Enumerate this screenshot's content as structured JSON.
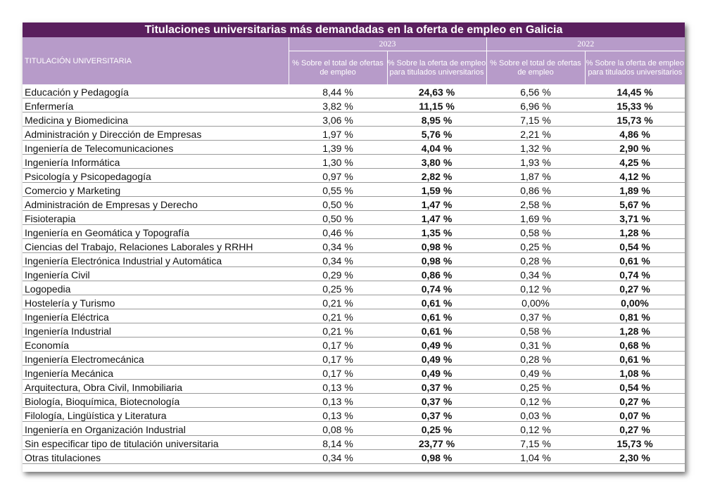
{
  "title": "Titulaciones universitarias más demandadas en la oferta de empleo en Galicia",
  "header": {
    "titulacion": "TITULACIÓN UNIVERSITARIA",
    "year_2023": "2023",
    "year_2022": "2022",
    "col_total": "% Sobre el total de ofertas de empleo",
    "col_titulados": "% Sobre la oferta de empleo para titulados universitarios"
  },
  "rows": [
    {
      "name": "Educación y Pedagogía",
      "t2023": "8,44 %",
      "u2023": "24,63 %",
      "t2022": "6,56 %",
      "u2022": "14,45 %"
    },
    {
      "name": "Enfermería",
      "t2023": "3,82 %",
      "u2023": "11,15 %",
      "t2022": "6,96 %",
      "u2022": "15,33 %"
    },
    {
      "name": "Medicina y Biomedicina",
      "t2023": "3,06 %",
      "u2023": "8,95 %",
      "t2022": "7,15 %",
      "u2022": "15,73 %"
    },
    {
      "name": "Administración y Dirección de Empresas",
      "t2023": "1,97 %",
      "u2023": "5,76 %",
      "t2022": "2,21 %",
      "u2022": "4,86 %"
    },
    {
      "name": "Ingeniería de Telecomunicaciones",
      "t2023": "1,39 %",
      "u2023": "4,04 %",
      "t2022": "1,32 %",
      "u2022": "2,90 %"
    },
    {
      "name": "Ingeniería Informática",
      "t2023": "1,30 %",
      "u2023": "3,80 %",
      "t2022": "1,93 %",
      "u2022": "4,25 %"
    },
    {
      "name": "Psicología y Psicopedagogía",
      "t2023": "0,97 %",
      "u2023": "2,82 %",
      "t2022": "1,87 %",
      "u2022": "4,12 %"
    },
    {
      "name": "Comercio y Marketing",
      "t2023": "0,55 %",
      "u2023": "1,59 %",
      "t2022": "0,86 %",
      "u2022": "1,89 %"
    },
    {
      "name": "Administración de Empresas y Derecho",
      "t2023": "0,50 %",
      "u2023": "1,47 %",
      "t2022": "2,58 %",
      "u2022": "5,67 %"
    },
    {
      "name": "Fisioterapia",
      "t2023": "0,50 %",
      "u2023": "1,47 %",
      "t2022": "1,69 %",
      "u2022": "3,71 %"
    },
    {
      "name": "Ingeniería en Geomática y Topografía",
      "t2023": "0,46 %",
      "u2023": "1,35 %",
      "t2022": "0,58 %",
      "u2022": "1,28 %"
    },
    {
      "name": "Ciencias del Trabajo, Relaciones Laborales y RRHH",
      "t2023": "0,34 %",
      "u2023": "0,98 %",
      "t2022": "0,25 %",
      "u2022": "0,54 %"
    },
    {
      "name": "Ingeniería Electrónica Industrial y Automática",
      "t2023": "0,34 %",
      "u2023": "0,98 %",
      "t2022": "0,28 %",
      "u2022": "0,61 %"
    },
    {
      "name": "Ingeniería Civil",
      "t2023": "0,29 %",
      "u2023": "0,86 %",
      "t2022": "0,34 %",
      "u2022": "0,74 %"
    },
    {
      "name": "Logopedia",
      "t2023": "0,25 %",
      "u2023": "0,74 %",
      "t2022": "0,12 %",
      "u2022": "0,27 %"
    },
    {
      "name": "Hostelería y Turismo",
      "t2023": "0,21 %",
      "u2023": "0,61 %",
      "t2022": "0,00%",
      "u2022": "0,00%"
    },
    {
      "name": "Ingeniería Eléctrica",
      "t2023": "0,21 %",
      "u2023": "0,61 %",
      "t2022": "0,37 %",
      "u2022": "0,81 %"
    },
    {
      "name": "Ingeniería Industrial",
      "t2023": "0,21 %",
      "u2023": "0,61 %",
      "t2022": "0,58 %",
      "u2022": "1,28 %"
    },
    {
      "name": "Economía",
      "t2023": "0,17 %",
      "u2023": "0,49 %",
      "t2022": "0,31 %",
      "u2022": "0,68 %"
    },
    {
      "name": "Ingeniería Electromecánica",
      "t2023": "0,17 %",
      "u2023": "0,49 %",
      "t2022": "0,28 %",
      "u2022": "0,61 %"
    },
    {
      "name": "Ingeniería Mecánica",
      "t2023": "0,17 %",
      "u2023": "0,49 %",
      "t2022": "0,49 %",
      "u2022": "1,08 %"
    },
    {
      "name": "Arquitectura, Obra Civil, Inmobiliaria",
      "t2023": "0,13 %",
      "u2023": "0,37 %",
      "t2022": "0,25 %",
      "u2022": "0,54 %"
    },
    {
      "name": "Biología, Bioquímica, Biotecnología",
      "t2023": "0,13 %",
      "u2023": "0,37 %",
      "t2022": "0,12 %",
      "u2022": "0,27 %"
    },
    {
      "name": "Filología, Lingüística y Literatura",
      "t2023": "0,13 %",
      "u2023": "0,37 %",
      "t2022": "0,03 %",
      "u2022": "0,07 %"
    },
    {
      "name": "Ingeniería en Organización Industrial",
      "t2023": "0,08 %",
      "u2023": "0,25 %",
      "t2022": "0,12 %",
      "u2022": "0,27 %"
    },
    {
      "name": "Sin especificar tipo de titulación universitaria",
      "t2023": "8,14 %",
      "u2023": "23,77 %",
      "t2022": "7,15 %",
      "u2022": "15,73 %"
    },
    {
      "name": "Otras titulaciones",
      "t2023": "0,34 %",
      "u2023": "0,98 %",
      "t2022": "1,04 %",
      "u2022": "2,30 %"
    }
  ],
  "colors": {
    "title_bg": "#5a1f5e",
    "header_bg": "#b79bc9"
  }
}
